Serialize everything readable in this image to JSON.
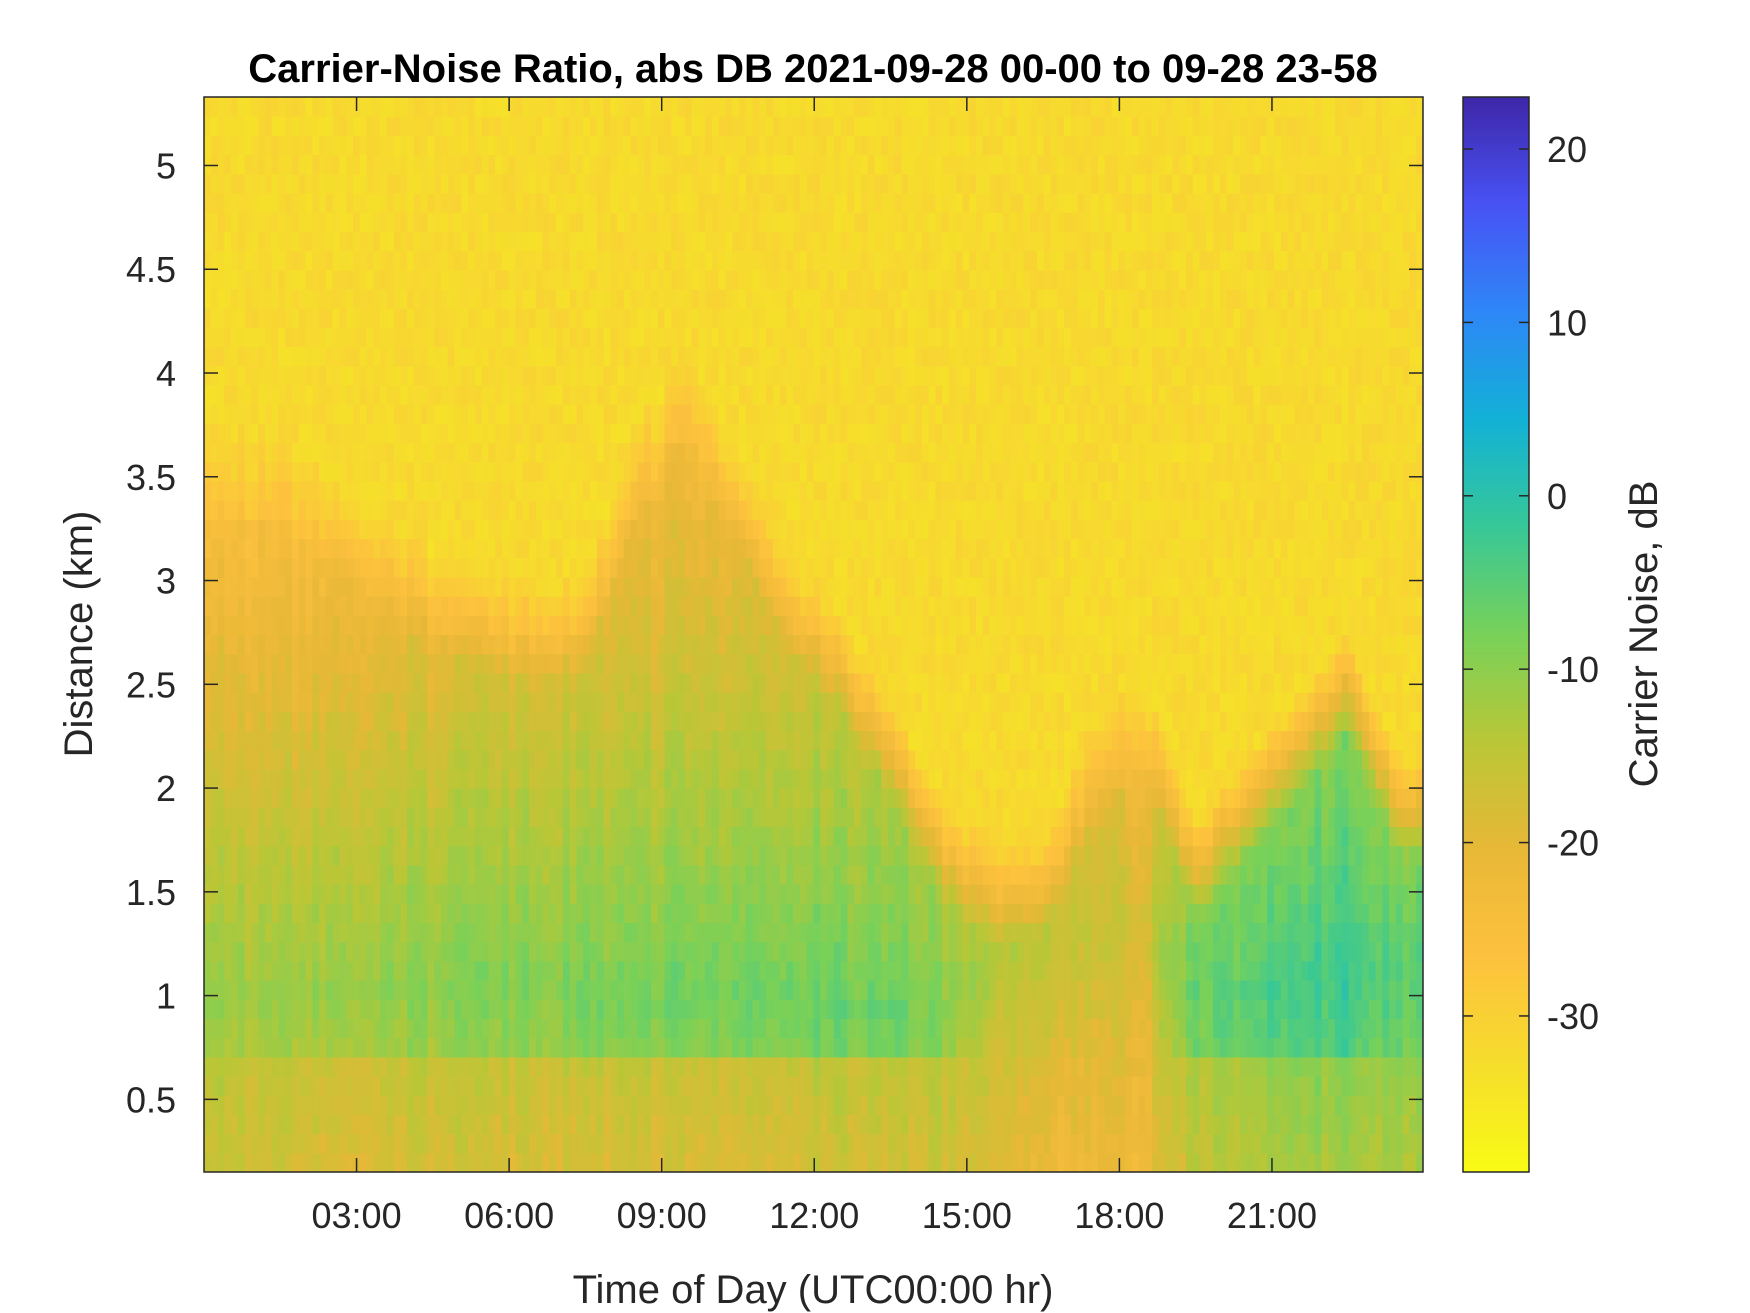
{
  "chart_data": {
    "type": "heatmap",
    "title": "Carrier-Noise Ratio, abs DB 2021-09-28 00-00 to 09-28 23-58",
    "xlabel": "Time of Day (UTC00:00 hr)",
    "ylabel": "Distance (km)",
    "colorbar_label": "Carrier Noise, dB",
    "x_unit": "hours UTC",
    "xlim": [
      0.0,
      23.97
    ],
    "ylim": [
      0.15,
      5.33
    ],
    "clim": [
      -39,
      23
    ],
    "colormap_reversed": true,
    "x_ticks": [
      {
        "value": 3,
        "label": "03:00"
      },
      {
        "value": 6,
        "label": "06:00"
      },
      {
        "value": 9,
        "label": "09:00"
      },
      {
        "value": 12,
        "label": "12:00"
      },
      {
        "value": 15,
        "label": "15:00"
      },
      {
        "value": 18,
        "label": "18:00"
      },
      {
        "value": 21,
        "label": "21:00"
      }
    ],
    "y_ticks": [
      {
        "value": 0.5,
        "label": "0.5"
      },
      {
        "value": 1,
        "label": "1"
      },
      {
        "value": 1.5,
        "label": "1.5"
      },
      {
        "value": 2,
        "label": "2"
      },
      {
        "value": 2.5,
        "label": "2.5"
      },
      {
        "value": 3,
        "label": "3"
      },
      {
        "value": 3.5,
        "label": "3.5"
      },
      {
        "value": 4,
        "label": "4"
      },
      {
        "value": 4.5,
        "label": "4.5"
      },
      {
        "value": 5,
        "label": "5"
      }
    ],
    "colorbar_ticks": [
      {
        "value": 20,
        "label": "20"
      },
      {
        "value": 10,
        "label": "10"
      },
      {
        "value": 0,
        "label": "0"
      },
      {
        "value": -10,
        "label": "-10"
      },
      {
        "value": -20,
        "label": "-20"
      },
      {
        "value": -30,
        "label": "-30"
      }
    ],
    "time_hours": [
      0.5,
      1.5,
      2.5,
      3.5,
      4.5,
      5.5,
      6.5,
      7.5,
      8.5,
      9.5,
      10.5,
      11.5,
      12.5,
      13.5,
      14.5,
      15.5,
      16.5,
      17.5,
      18.5,
      19.5,
      20.5,
      21.5,
      22.5,
      23.5
    ],
    "cloud_top_km": [
      3.6,
      3.6,
      3.4,
      3.2,
      3.0,
      2.9,
      2.85,
      2.9,
      3.6,
      4.0,
      3.5,
      3.0,
      2.7,
      2.3,
      1.8,
      1.6,
      1.6,
      2.2,
      2.4,
      1.7,
      2.0,
      2.3,
      2.6,
      2.0
    ],
    "core_center_km": [
      1.0,
      1.0,
      1.05,
      1.05,
      1.05,
      1.05,
      1.05,
      1.0,
      1.0,
      1.0,
      1.0,
      1.0,
      0.95,
      0.9,
      0.9,
      1.2,
      1.3,
      1.3,
      1.3,
      1.0,
      1.0,
      1.0,
      1.1,
      1.1
    ],
    "core_min_db": [
      -11,
      -11,
      -10,
      -10,
      -10,
      -9,
      -9,
      -8,
      -8,
      -7,
      -7,
      -7,
      -7,
      -6,
      -9,
      -14,
      -15,
      -16,
      -17,
      -6,
      -5,
      -3,
      -2,
      -5
    ],
    "surface_db": [
      -17,
      -17,
      -18,
      -18,
      -18,
      -18,
      -18,
      -18,
      -18,
      -18,
      -18,
      -18,
      -17,
      -17,
      -17,
      -19,
      -22,
      -22,
      -22,
      -15,
      -14,
      -12,
      -12,
      -13
    ],
    "above_cloud_db": -32
  }
}
